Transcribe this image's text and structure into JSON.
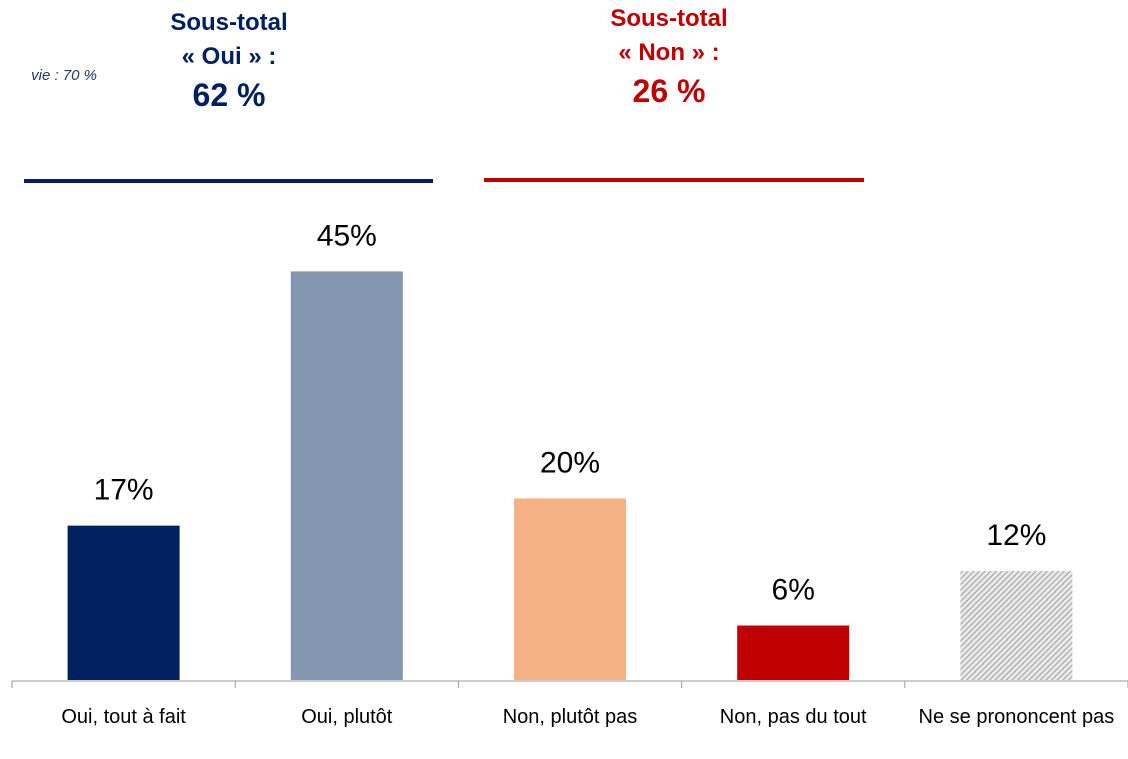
{
  "chart_data": {
    "type": "bar",
    "note": "vie : 70 %",
    "categories": [
      "Oui, tout à fait",
      "Oui, plutôt",
      "Non, plutôt pas",
      "Non, pas du tout",
      "Ne se prononcent pas"
    ],
    "values": [
      17,
      45,
      20,
      6,
      12
    ],
    "value_labels": [
      "17%",
      "45%",
      "20%",
      "6%",
      "12%"
    ],
    "colors": [
      "#002060",
      "#8497b0",
      "#f4b183",
      "#c00000",
      "hatch"
    ],
    "ylim": [
      0,
      50
    ],
    "subtotals": [
      {
        "title": "Sous-total",
        "group": "« Oui » :",
        "value": 62,
        "value_label": "62 %",
        "color": "#002060"
      },
      {
        "title": "Sous-total",
        "group": "« Non » :",
        "value": 26,
        "value_label": "26 %",
        "color": "#c00000"
      }
    ]
  }
}
